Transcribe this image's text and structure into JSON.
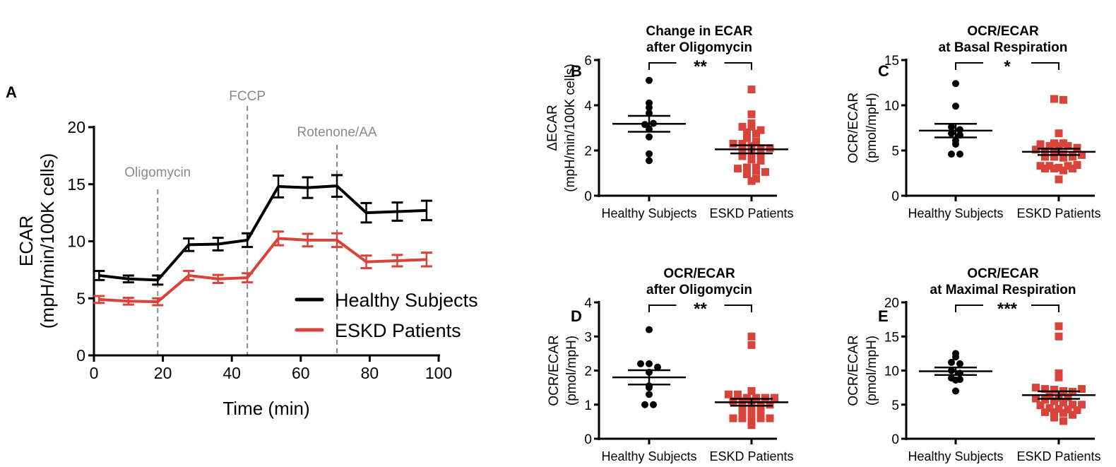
{
  "colors": {
    "healthy": "#000000",
    "eskd": "#d9443a",
    "marker": "#8a8a8a"
  },
  "chart_data": [
    {
      "panel": "A",
      "type": "line",
      "xlabel": "Time (min)",
      "ylabel": [
        "ECAR",
        "(mpH/min/100K cells)"
      ],
      "xlim": [
        0,
        100
      ],
      "ylim": [
        0,
        20
      ],
      "xticks": [
        "0",
        "20",
        "40",
        "60",
        "80",
        "100"
      ],
      "yticks": [
        "0",
        "5",
        "10",
        "15",
        "20"
      ],
      "x": [
        1.5,
        10,
        18.5,
        27.5,
        36,
        44.5,
        53.5,
        62,
        70.5,
        79,
        88,
        96.5
      ],
      "series": [
        {
          "name": "Healthy Subjects",
          "values": [
            7.0,
            6.7,
            6.6,
            9.7,
            9.75,
            10.1,
            14.8,
            14.7,
            14.85,
            12.5,
            12.6,
            12.7
          ],
          "sem": [
            0.4,
            0.3,
            0.4,
            0.55,
            0.55,
            0.6,
            0.95,
            0.9,
            0.95,
            0.85,
            0.8,
            0.85
          ]
        },
        {
          "name": "ESKD Patients",
          "values": [
            4.9,
            4.75,
            4.7,
            7.0,
            6.7,
            6.8,
            10.25,
            10.1,
            10.1,
            8.2,
            8.3,
            8.4
          ],
          "sem": [
            0.3,
            0.3,
            0.3,
            0.4,
            0.35,
            0.4,
            0.6,
            0.55,
            0.6,
            0.55,
            0.5,
            0.6
          ]
        }
      ],
      "annotations": [
        {
          "label": "Oligomycin",
          "x": 18.5
        },
        {
          "label": "FCCP",
          "x": 44.5
        },
        {
          "label": "Rotenone/AA",
          "x": 70.5
        }
      ],
      "legend": "bottom-right"
    },
    {
      "panel": "B",
      "type": "scatter",
      "title": [
        "Change in ECAR",
        "after Oligomycin"
      ],
      "ylabel": [
        "ΔECAR",
        "(mpH/min/100K cells)"
      ],
      "ylim": [
        0,
        6
      ],
      "yticks": [
        "0",
        "2",
        "4",
        "6"
      ],
      "categories": [
        "Healthy Subjects",
        "ESKD Patients"
      ],
      "significance": "**",
      "groups": [
        {
          "name": "Healthy Subjects",
          "mean": 3.18,
          "sem": 0.35,
          "values": [
            5.1,
            4.1,
            3.9,
            3.65,
            3.15,
            2.95,
            3.2,
            2.6,
            1.85,
            1.55
          ]
        },
        {
          "name": "ESKD Patients",
          "mean": 2.05,
          "sem": 0.18,
          "values": [
            4.7,
            3.6,
            3.2,
            3.05,
            3.05,
            2.9,
            2.8,
            2.75,
            2.55,
            2.4,
            2.3,
            2.3,
            2.2,
            2.1,
            2.1,
            2.0,
            1.9,
            1.85,
            1.75,
            1.6,
            1.55,
            1.25,
            1.25,
            1.2,
            1.15,
            1.1,
            1.05,
            0.95,
            0.75,
            0.65
          ]
        }
      ]
    },
    {
      "panel": "C",
      "type": "scatter",
      "title": [
        "OCR/ECAR",
        "at Basal Respiration"
      ],
      "ylabel": [
        "OCR/ECAR",
        "(pmol/mpH)"
      ],
      "ylim": [
        0,
        15
      ],
      "yticks": [
        "0",
        "5",
        "10",
        "15"
      ],
      "categories": [
        "Healthy Subjects",
        "ESKD Patients"
      ],
      "significance": "*",
      "groups": [
        {
          "name": "Healthy Subjects",
          "mean": 7.2,
          "sem": 0.75,
          "values": [
            12.4,
            9.9,
            7.6,
            7.3,
            6.9,
            6.7,
            6.1,
            5.7,
            4.6,
            4.6
          ]
        },
        {
          "name": "ESKD Patients",
          "mean": 4.85,
          "sem": 0.35,
          "values": [
            10.7,
            10.6,
            6.9,
            5.8,
            5.7,
            5.8,
            5.5,
            5.5,
            5.5,
            5.3,
            5.1,
            4.9,
            4.9,
            4.6,
            4.5,
            4.3,
            4.3,
            4.2,
            4.3,
            4.5,
            3.3,
            3.3,
            3.0,
            3.0,
            2.8,
            3.0,
            3.1,
            3.3,
            3.4,
            1.8
          ]
        }
      ]
    },
    {
      "panel": "D",
      "type": "scatter",
      "title": [
        "OCR/ECAR",
        "after Oligomycin"
      ],
      "ylabel": [
        "OCR/ECAR",
        "(pmol/mpH)"
      ],
      "ylim": [
        0,
        4
      ],
      "yticks": [
        "0",
        "1",
        "2",
        "3",
        "4"
      ],
      "categories": [
        "Healthy Subjects",
        "ESKD Patients"
      ],
      "significance": "**",
      "groups": [
        {
          "name": "Healthy Subjects",
          "mean": 1.8,
          "sem": 0.21,
          "values": [
            3.2,
            2.2,
            2.2,
            2.1,
            1.95,
            1.55,
            1.5,
            1.3,
            1.0,
            1.0
          ]
        },
        {
          "name": "ESKD Patients",
          "mean": 1.07,
          "sem": 0.1,
          "values": [
            3.0,
            2.75,
            1.4,
            1.3,
            1.3,
            1.2,
            1.2,
            1.2,
            1.2,
            1.1,
            1.1,
            1.1,
            1.0,
            1.0,
            0.9,
            0.9,
            0.9,
            0.8,
            0.8,
            0.8,
            0.6,
            0.6,
            0.6,
            0.6,
            0.6,
            0.4
          ]
        }
      ]
    },
    {
      "panel": "E",
      "type": "scatter",
      "title": [
        "OCR/ECAR",
        "at Maximal Respiration"
      ],
      "ylabel": [
        "OCR/ECAR",
        "(pmol/mpH)"
      ],
      "ylim": [
        0,
        20
      ],
      "yticks": [
        "0",
        "5",
        "10",
        "15",
        "20"
      ],
      "categories": [
        "Healthy Subjects",
        "ESKD Patients"
      ],
      "significance": "***",
      "groups": [
        {
          "name": "Healthy Subjects",
          "mean": 9.9,
          "sem": 0.55,
          "values": [
            12.5,
            12.0,
            11.2,
            11.0,
            10.0,
            9.6,
            8.9,
            8.6,
            8.7,
            7.0
          ]
        },
        {
          "name": "ESKD Patients",
          "mean": 6.4,
          "sem": 0.55,
          "values": [
            16.5,
            15.0,
            9.6,
            9.0,
            7.5,
            7.3,
            7.2,
            7.0,
            6.9,
            7.3,
            6.4,
            6.0,
            6.1,
            5.9,
            5.7,
            5.5,
            5.3,
            5.0,
            5.0,
            4.9,
            4.5,
            4.4,
            4.3,
            4.2,
            3.9,
            3.9,
            3.8,
            3.5,
            3.1,
            2.6
          ]
        }
      ]
    }
  ]
}
